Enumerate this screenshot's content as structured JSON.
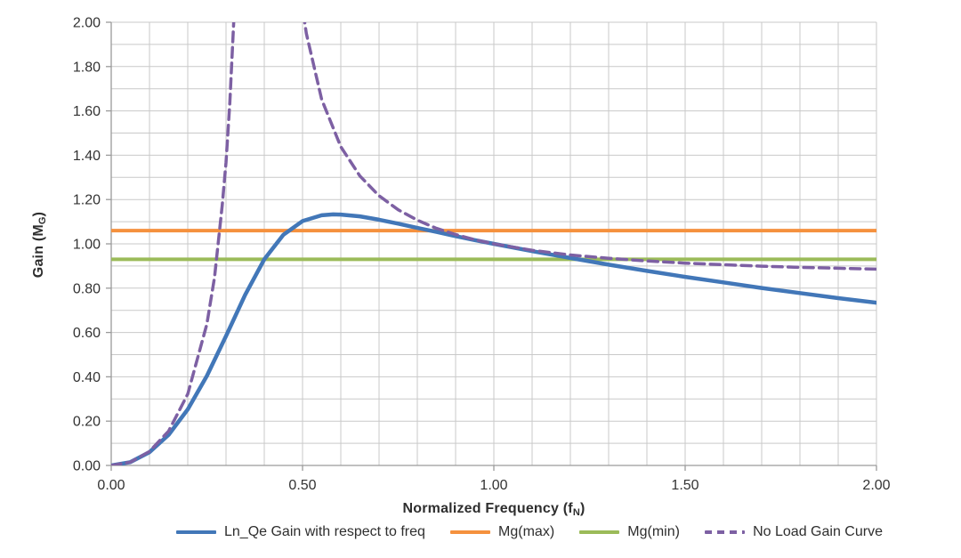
{
  "chart_data": {
    "type": "line",
    "title": "",
    "xlabel": {
      "prefix": "Normalized Frequency (f",
      "sub": "N",
      "suffix": ")"
    },
    "ylabel": {
      "prefix": "Gain (M",
      "sub": "G",
      "suffix": ")"
    },
    "xlim": [
      0,
      2
    ],
    "ylim": [
      0,
      2
    ],
    "x_ticks": [
      {
        "v": 0.0,
        "label": "0.00"
      },
      {
        "v": 0.5,
        "label": "0.50"
      },
      {
        "v": 1.0,
        "label": "1.00"
      },
      {
        "v": 1.5,
        "label": "1.50"
      },
      {
        "v": 2.0,
        "label": "2.00"
      }
    ],
    "y_ticks": [
      {
        "v": 0.0,
        "label": "0.00"
      },
      {
        "v": 0.2,
        "label": "0.20"
      },
      {
        "v": 0.4,
        "label": "0.40"
      },
      {
        "v": 0.6,
        "label": "0.60"
      },
      {
        "v": 0.8,
        "label": "0.80"
      },
      {
        "v": 1.0,
        "label": "1.00"
      },
      {
        "v": 1.2,
        "label": "1.20"
      },
      {
        "v": 1.4,
        "label": "1.40"
      },
      {
        "v": 1.6,
        "label": "1.60"
      },
      {
        "v": 1.8,
        "label": "1.80"
      },
      {
        "v": 2.0,
        "label": "2.00"
      }
    ],
    "minor_grid_step": 0.1,
    "grid": true,
    "legend_position": "bottom",
    "colors": {
      "gridline": "#c9c9c9",
      "axis": "#9a9a9a",
      "tick_text": "#333333",
      "background": "#ffffff"
    },
    "series": [
      {
        "id": "ln-qe-gain-curve",
        "name": "Ln_Qe Gain with respect to freq",
        "color": "#4277B8",
        "style": "solid",
        "width": 4.5,
        "segments": [
          [
            [
              0,
              0
            ],
            [
              0.05,
              0.015
            ],
            [
              0.1,
              0.06
            ],
            [
              0.15,
              0.138
            ],
            [
              0.2,
              0.253
            ],
            [
              0.25,
              0.404
            ],
            [
              0.3,
              0.584
            ],
            [
              0.35,
              0.77
            ],
            [
              0.4,
              0.93
            ],
            [
              0.45,
              1.041
            ],
            [
              0.5,
              1.103
            ],
            [
              0.55,
              1.129
            ],
            [
              0.58,
              1.133
            ],
            [
              0.6,
              1.132
            ],
            [
              0.65,
              1.124
            ],
            [
              0.7,
              1.109
            ],
            [
              0.75,
              1.091
            ],
            [
              0.8,
              1.072
            ],
            [
              0.85,
              1.054
            ],
            [
              0.9,
              1.035
            ],
            [
              0.95,
              1.017
            ],
            [
              1,
              1
            ],
            [
              1.1,
              0.967
            ],
            [
              1.2,
              0.936
            ],
            [
              1.3,
              0.906
            ],
            [
              1.4,
              0.878
            ],
            [
              1.5,
              0.851
            ],
            [
              1.6,
              0.826
            ],
            [
              1.7,
              0.801
            ],
            [
              1.8,
              0.778
            ],
            [
              1.9,
              0.755
            ],
            [
              2,
              0.734
            ]
          ]
        ]
      },
      {
        "id": "mg-max-line",
        "name": "Mg(max)",
        "color": "#F5913E",
        "style": "solid",
        "width": 4,
        "value": 1.06,
        "segments": [
          [
            [
              0,
              1.06
            ],
            [
              2,
              1.06
            ]
          ]
        ]
      },
      {
        "id": "mg-min-line",
        "name": "Mg(min)",
        "color": "#9BBB59",
        "style": "solid",
        "width": 4,
        "value": 0.93,
        "segments": [
          [
            [
              0,
              0.93
            ],
            [
              2,
              0.93
            ]
          ]
        ]
      },
      {
        "id": "no-load-gain-curve",
        "name": "No Load Gain Curve",
        "color": "#7D60A3",
        "style": "dashed",
        "width": 3.5,
        "segments": [
          [
            [
              0,
              0
            ],
            [
              0.05,
              0.015
            ],
            [
              0.1,
              0.063
            ],
            [
              0.15,
              0.155
            ],
            [
              0.2,
              0.322
            ],
            [
              0.25,
              0.638
            ],
            [
              0.27,
              0.849
            ],
            [
              0.29,
              1.172
            ],
            [
              0.3,
              1.367
            ],
            [
              0.31,
              1.638
            ],
            [
              0.32,
              1.996
            ],
            [
              0.33,
              2.49
            ]
          ],
          [
            [
              0.49,
              2.18
            ],
            [
              0.51,
              1.949
            ],
            [
              0.55,
              1.652
            ],
            [
              0.6,
              1.438
            ],
            [
              0.65,
              1.306
            ],
            [
              0.7,
              1.217
            ],
            [
              0.75,
              1.154
            ],
            [
              0.8,
              1.107
            ],
            [
              0.85,
              1.07
            ],
            [
              0.9,
              1.042
            ],
            [
              0.95,
              1.019
            ],
            [
              1,
              1
            ],
            [
              1.1,
              0.971
            ],
            [
              1.2,
              0.95
            ],
            [
              1.3,
              0.935
            ],
            [
              1.4,
              0.923
            ],
            [
              1.5,
              0.913
            ],
            [
              1.6,
              0.906
            ],
            [
              1.7,
              0.899
            ],
            [
              1.8,
              0.894
            ],
            [
              1.9,
              0.89
            ],
            [
              2,
              0.886
            ]
          ]
        ]
      }
    ]
  }
}
